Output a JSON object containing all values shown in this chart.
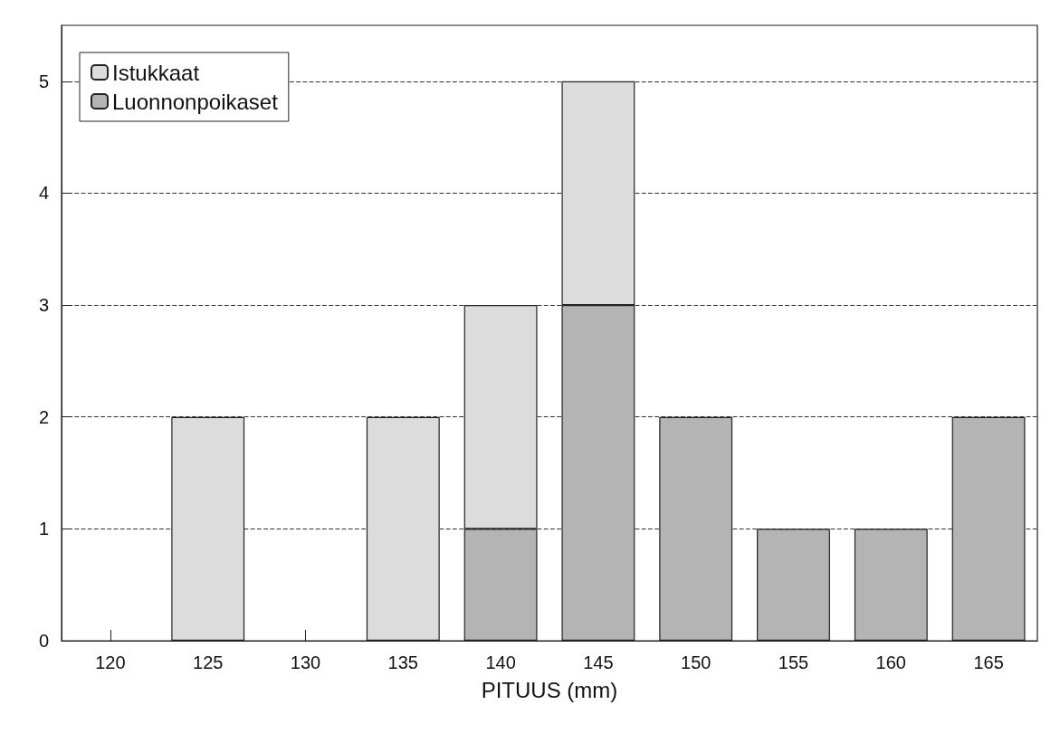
{
  "chart_data": {
    "type": "bar",
    "xlabel": "PITUUS (mm)",
    "categories": [
      "120",
      "125",
      "130",
      "135",
      "140",
      "145",
      "150",
      "155",
      "160",
      "165"
    ],
    "series": [
      {
        "name": "Luonnonpoikaset",
        "color": "#b4b4b4",
        "values": [
          null,
          null,
          null,
          null,
          1,
          3,
          2,
          1,
          1,
          2
        ]
      },
      {
        "name": "Istukkaat",
        "color": "#dcdcdc",
        "values": [
          null,
          2,
          null,
          2,
          2,
          2,
          null,
          null,
          null,
          null
        ]
      }
    ],
    "stacked": true,
    "ylim": [
      0,
      5.5
    ],
    "yticks": [
      0,
      1,
      2,
      3,
      4,
      5
    ],
    "grid": "y",
    "legend": "top left"
  }
}
